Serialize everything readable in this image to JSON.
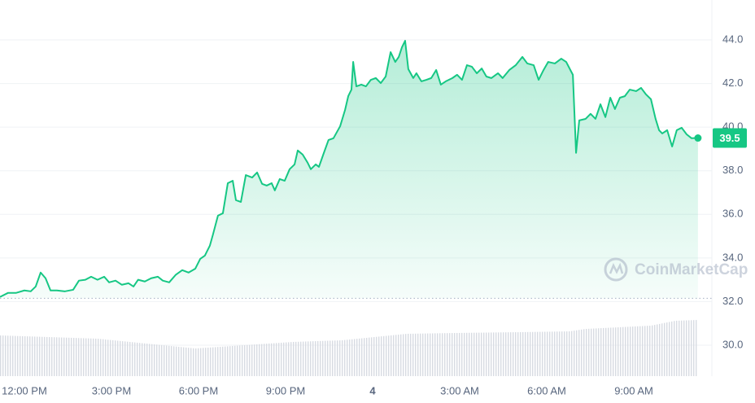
{
  "chart_data": {
    "type": "line",
    "color": "#16c784",
    "watermark": "CoinMarketCap",
    "baseline": 32.15,
    "grid": true,
    "xlim": [
      -0.84,
      23.69
    ],
    "ylim": [
      28.58,
      45.83
    ],
    "yticks": [
      {
        "value": 30,
        "label": "30.0"
      },
      {
        "value": 32,
        "label": "32.0"
      },
      {
        "value": 34,
        "label": "34.0"
      },
      {
        "value": 36,
        "label": "36.0"
      },
      {
        "value": 38,
        "label": "38.0"
      },
      {
        "value": 40,
        "label": "40.0"
      },
      {
        "value": 42,
        "label": "42.0"
      },
      {
        "value": 44,
        "label": "44.0"
      }
    ],
    "xticks": [
      {
        "value": 0,
        "label": "12:00 PM"
      },
      {
        "value": 3,
        "label": "3:00 PM"
      },
      {
        "value": 6,
        "label": "6:00 PM"
      },
      {
        "value": 9,
        "label": "9:00 PM"
      },
      {
        "value": 12,
        "label": "4"
      },
      {
        "value": 15,
        "label": "3:00 AM"
      },
      {
        "value": 18,
        "label": "6:00 AM"
      },
      {
        "value": 21,
        "label": "9:00 AM"
      }
    ],
    "x": [
      -0.84,
      -0.56,
      -0.28,
      0,
      0.22,
      0.39,
      0.56,
      0.73,
      0.9,
      1.12,
      1.4,
      1.68,
      1.88,
      2.1,
      2.3,
      2.52,
      2.75,
      2.92,
      3.14,
      3.36,
      3.59,
      3.76,
      3.92,
      4.15,
      4.37,
      4.6,
      4.77,
      4.99,
      5.21,
      5.44,
      5.66,
      5.89,
      6.06,
      6.22,
      6.39,
      6.5,
      6.67,
      6.84,
      7.01,
      7.18,
      7.29,
      7.46,
      7.63,
      7.85,
      8.02,
      8.19,
      8.35,
      8.52,
      8.63,
      8.8,
      8.97,
      9.14,
      9.31,
      9.42,
      9.59,
      9.76,
      9.87,
      10.04,
      10.15,
      10.32,
      10.48,
      10.65,
      10.88,
      11.05,
      11.16,
      11.27,
      11.33,
      11.44,
      11.61,
      11.77,
      11.94,
      12.11,
      12.28,
      12.45,
      12.62,
      12.78,
      12.9,
      13.01,
      13.12,
      13.23,
      13.4,
      13.51,
      13.68,
      13.85,
      14.02,
      14.19,
      14.35,
      14.52,
      14.75,
      14.91,
      15.08,
      15.25,
      15.42,
      15.59,
      15.76,
      15.92,
      16.09,
      16.32,
      16.48,
      16.71,
      16.93,
      17.16,
      17.33,
      17.55,
      17.72,
      17.89,
      18.05,
      18.28,
      18.5,
      18.67,
      18.9,
      19.01,
      19.12,
      19.34,
      19.51,
      19.68,
      19.85,
      20.02,
      20.19,
      20.35,
      20.52,
      20.69,
      20.86,
      21.08,
      21.25,
      21.42,
      21.59,
      21.75,
      21.87,
      21.98,
      22.15,
      22.32,
      22.48,
      22.65,
      22.82,
      22.99,
      23.21
    ],
    "values": [
      32.21,
      32.4,
      32.4,
      32.51,
      32.47,
      32.69,
      33.33,
      33.07,
      32.51,
      32.51,
      32.47,
      32.54,
      32.96,
      33.0,
      33.14,
      33.0,
      33.14,
      32.88,
      32.96,
      32.77,
      32.84,
      32.69,
      33.0,
      32.92,
      33.07,
      33.14,
      32.96,
      32.88,
      33.22,
      33.44,
      33.33,
      33.51,
      33.96,
      34.11,
      34.56,
      35.08,
      35.94,
      36.05,
      37.43,
      37.54,
      36.65,
      36.57,
      37.8,
      37.69,
      37.92,
      37.4,
      37.32,
      37.43,
      37.1,
      37.62,
      37.54,
      38.07,
      38.29,
      38.93,
      38.74,
      38.37,
      38.07,
      38.29,
      38.18,
      38.82,
      39.41,
      39.49,
      40.04,
      40.79,
      41.42,
      41.72,
      42.99,
      41.87,
      41.95,
      41.87,
      42.17,
      42.25,
      42.02,
      42.32,
      43.44,
      42.99,
      43.22,
      43.66,
      43.96,
      42.66,
      42.25,
      42.47,
      42.1,
      42.17,
      42.25,
      42.62,
      41.95,
      42.1,
      42.25,
      42.4,
      42.17,
      42.84,
      42.77,
      42.47,
      42.69,
      42.32,
      42.25,
      42.47,
      42.25,
      42.62,
      42.84,
      43.22,
      42.92,
      42.84,
      42.17,
      42.62,
      42.99,
      42.92,
      43.14,
      42.99,
      42.4,
      38.82,
      40.31,
      40.38,
      40.61,
      40.38,
      41.05,
      40.46,
      41.35,
      40.83,
      41.35,
      41.42,
      41.72,
      41.65,
      41.8,
      41.5,
      41.28,
      40.38,
      39.86,
      39.71,
      39.86,
      39.11,
      39.86,
      39.97,
      39.67,
      39.49,
      39.5
    ]
  }
}
